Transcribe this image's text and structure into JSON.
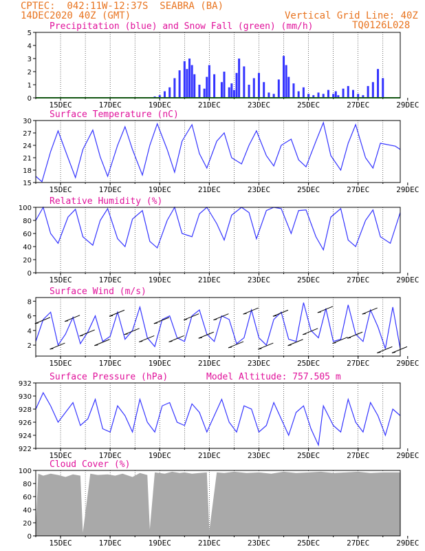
{
  "header": {
    "line1_left": "CPTEC:  042:11W-12:37S  SEABRA (BA)",
    "line2_left": "14DEC2020 40Z (GMT)",
    "line2_right": "Vertical Grid Line: 40Z",
    "line3_right": "TQ0126L028"
  },
  "x_ticks": [
    "15DEC",
    "17DEC",
    "19DEC",
    "21DEC",
    "23DEC",
    "25DEC",
    "27DEC",
    "29DEC"
  ],
  "colors": {
    "series": "#3333ff",
    "snow": "#22aa22",
    "cloud": "#a9a9a9",
    "title": "#e0109a",
    "header": "#e8731e"
  },
  "chart_data": [
    {
      "id": "precip",
      "type": "bar",
      "title": "Precipitation (blue) and Snow Fall (green) (mm/h)",
      "ylim": [
        0,
        5
      ],
      "yticks": [
        "0",
        "1",
        "2",
        "3",
        "4",
        "5"
      ],
      "x": [
        4.8,
        5.0,
        5.2,
        5.4,
        5.6,
        5.8,
        6.0,
        6.1,
        6.2,
        6.3,
        6.4,
        6.6,
        6.8,
        6.9,
        7.0,
        7.2,
        7.5,
        7.6,
        7.8,
        7.9,
        8.0,
        8.1,
        8.2,
        8.4,
        8.6,
        8.8,
        9.0,
        9.2,
        9.4,
        9.6,
        9.8,
        10.0,
        10.1,
        10.2,
        10.4,
        10.6,
        10.8,
        11.0,
        11.2,
        11.4,
        11.6,
        11.8,
        12.0,
        12.1,
        12.2,
        12.4,
        12.6,
        12.8,
        13.0,
        13.2,
        13.4,
        13.6,
        13.8,
        14.0
      ],
      "values": [
        0.1,
        0.2,
        0.5,
        0.8,
        1.5,
        2.1,
        2.8,
        2.2,
        3.0,
        2.5,
        1.8,
        1.0,
        0.7,
        1.6,
        2.5,
        1.8,
        1.2,
        2.0,
        0.8,
        1.1,
        0.6,
        1.9,
        3.0,
        2.4,
        1.0,
        1.5,
        1.9,
        1.2,
        0.4,
        0.3,
        1.4,
        3.2,
        2.5,
        1.6,
        1.1,
        0.5,
        0.8,
        0.3,
        0.2,
        0.4,
        0.3,
        0.6,
        0.3,
        0.5,
        0.2,
        0.7,
        0.9,
        0.6,
        0.3,
        0.2,
        0.9,
        1.2,
        2.2,
        1.5
      ],
      "snow": 0
    },
    {
      "id": "temp",
      "type": "line",
      "title": "Surface Temperature (nC)",
      "ylim": [
        15,
        30
      ],
      "yticks": [
        "15",
        "18",
        "21",
        "24",
        "27",
        "30"
      ],
      "x": [
        0.0,
        0.25,
        0.6,
        0.9,
        1.3,
        1.6,
        1.9,
        2.3,
        2.6,
        2.9,
        3.3,
        3.6,
        3.9,
        4.3,
        4.6,
        4.9,
        5.3,
        5.6,
        5.9,
        6.3,
        6.6,
        6.9,
        7.3,
        7.6,
        7.9,
        8.3,
        8.6,
        8.9,
        9.3,
        9.6,
        9.9,
        10.3,
        10.6,
        10.9,
        11.3,
        11.6,
        11.9,
        12.3,
        12.6,
        12.9,
        13.3,
        13.6,
        13.9,
        14.5,
        14.7
      ],
      "values": [
        16.5,
        15.2,
        22.5,
        27.5,
        21.0,
        16.2,
        23.0,
        27.7,
        21.2,
        16.5,
        24.0,
        28.5,
        23.0,
        16.8,
        24.0,
        29.2,
        23.0,
        17.5,
        25.0,
        29.0,
        22.0,
        18.5,
        25.0,
        27.0,
        21.0,
        19.5,
        24.0,
        27.5,
        21.5,
        19.0,
        24.0,
        25.5,
        20.5,
        18.8,
        25.0,
        29.5,
        21.5,
        18.0,
        24.5,
        29.0,
        21.0,
        18.5,
        24.5,
        23.8,
        23.0
      ]
    },
    {
      "id": "rh",
      "type": "line",
      "title": "Relative Humidity (%)",
      "ylim": [
        0,
        100
      ],
      "yticks": [
        "0",
        "20",
        "40",
        "60",
        "80",
        "100"
      ],
      "x": [
        0.0,
        0.3,
        0.6,
        0.9,
        1.3,
        1.6,
        1.9,
        2.3,
        2.6,
        2.9,
        3.3,
        3.6,
        3.9,
        4.3,
        4.6,
        4.9,
        5.3,
        5.6,
        5.9,
        6.3,
        6.6,
        6.9,
        7.3,
        7.6,
        7.9,
        8.3,
        8.6,
        8.9,
        9.3,
        9.6,
        9.9,
        10.3,
        10.6,
        10.9,
        11.3,
        11.6,
        11.9,
        12.3,
        12.6,
        12.9,
        13.3,
        13.6,
        13.9,
        14.3,
        14.7
      ],
      "values": [
        80,
        100,
        60,
        45,
        85,
        97,
        55,
        42,
        80,
        98,
        52,
        40,
        82,
        95,
        48,
        38,
        80,
        100,
        60,
        55,
        90,
        100,
        75,
        50,
        88,
        100,
        92,
        52,
        95,
        100,
        98,
        60,
        95,
        96,
        55,
        35,
        85,
        98,
        50,
        40,
        80,
        96,
        55,
        45,
        92
      ]
    },
    {
      "id": "wind",
      "type": "line",
      "title": "Surface Wind (m/s)",
      "ylim": [
        0.5,
        8.5
      ],
      "yticks": [
        "2",
        "4",
        "6",
        "8"
      ],
      "x": [
        0.0,
        0.3,
        0.6,
        0.9,
        1.2,
        1.5,
        1.8,
        2.1,
        2.4,
        2.7,
        3.0,
        3.3,
        3.6,
        3.9,
        4.2,
        4.5,
        4.8,
        5.1,
        5.4,
        5.7,
        6.0,
        6.3,
        6.6,
        6.9,
        7.2,
        7.5,
        7.8,
        8.1,
        8.4,
        8.7,
        9.0,
        9.3,
        9.6,
        9.9,
        10.2,
        10.5,
        10.8,
        11.1,
        11.4,
        11.7,
        12.0,
        12.3,
        12.6,
        12.9,
        13.2,
        13.5,
        13.8,
        14.1,
        14.4,
        14.7
      ],
      "values": [
        2.5,
        5.5,
        6.5,
        2.0,
        3.5,
        5.8,
        2.2,
        3.8,
        6.0,
        2.5,
        3.2,
        6.5,
        2.8,
        4.0,
        7.2,
        3.0,
        1.8,
        5.5,
        6.0,
        3.0,
        2.5,
        6.0,
        6.8,
        3.5,
        2.5,
        6.0,
        5.5,
        2.2,
        3.0,
        6.8,
        3.0,
        2.0,
        5.5,
        6.5,
        2.8,
        2.5,
        7.8,
        4.0,
        3.0,
        7.0,
        2.5,
        2.8,
        7.5,
        3.5,
        2.5,
        6.8,
        4.5,
        1.5,
        7.2,
        1.5
      ]
    },
    {
      "id": "pressure",
      "type": "line",
      "title": "Surface Pressure (hPa)",
      "subtitle": "Model Altitude: 757.505 m",
      "ylim": [
        922,
        932
      ],
      "yticks": [
        "922",
        "924",
        "926",
        "928",
        "930",
        "932"
      ],
      "x": [
        0.0,
        0.3,
        0.6,
        0.9,
        1.2,
        1.5,
        1.8,
        2.1,
        2.4,
        2.7,
        3.0,
        3.3,
        3.6,
        3.9,
        4.2,
        4.5,
        4.8,
        5.1,
        5.4,
        5.7,
        6.0,
        6.3,
        6.6,
        6.9,
        7.2,
        7.5,
        7.8,
        8.1,
        8.4,
        8.7,
        9.0,
        9.3,
        9.6,
        9.9,
        10.2,
        10.5,
        10.8,
        11.1,
        11.4,
        11.6,
        12.0,
        12.3,
        12.6,
        12.9,
        13.2,
        13.5,
        13.8,
        14.1,
        14.4,
        14.7
      ],
      "values": [
        928,
        930.5,
        928.5,
        926,
        927.5,
        929,
        925.5,
        926.5,
        929.5,
        925,
        924.5,
        928.5,
        927,
        924.5,
        929.5,
        926,
        924.5,
        928.5,
        929,
        926,
        925.5,
        928.8,
        927.5,
        924.5,
        927,
        929.5,
        926,
        924.5,
        928.5,
        928,
        924.5,
        925.5,
        929,
        926.5,
        924,
        927.5,
        928.5,
        925,
        922.5,
        928.5,
        925.5,
        924.5,
        929.5,
        926,
        924.5,
        929,
        927,
        924,
        928,
        927
      ]
    },
    {
      "id": "cloud",
      "type": "area",
      "title": "Cloud Cover (%)",
      "ylim": [
        0,
        100
      ],
      "yticks": [
        "0",
        "20",
        "40",
        "60",
        "80",
        "100"
      ],
      "x": [
        0.0,
        0.1,
        0.3,
        0.6,
        0.9,
        1.2,
        1.5,
        1.8,
        1.9,
        2.2,
        2.5,
        2.9,
        3.2,
        3.5,
        3.9,
        4.2,
        4.5,
        4.6,
        4.8,
        5.0,
        5.2,
        5.5,
        5.8,
        6.0,
        6.3,
        6.6,
        6.9,
        7.0,
        7.3,
        7.6,
        8.0,
        8.5,
        9.0,
        9.5,
        10.0,
        10.5,
        11.0,
        11.5,
        12.0,
        12.5,
        13.0,
        13.5,
        14.0,
        14.7
      ],
      "values": [
        10,
        95,
        92,
        95,
        93,
        90,
        94,
        92,
        5,
        95,
        93,
        94,
        92,
        95,
        90,
        96,
        93,
        10,
        97,
        96,
        95,
        98,
        96,
        97,
        95,
        96,
        97,
        8,
        97,
        96,
        98,
        96,
        97,
        95,
        98,
        96,
        97,
        98,
        96,
        97,
        98,
        96,
        97,
        97
      ]
    }
  ]
}
